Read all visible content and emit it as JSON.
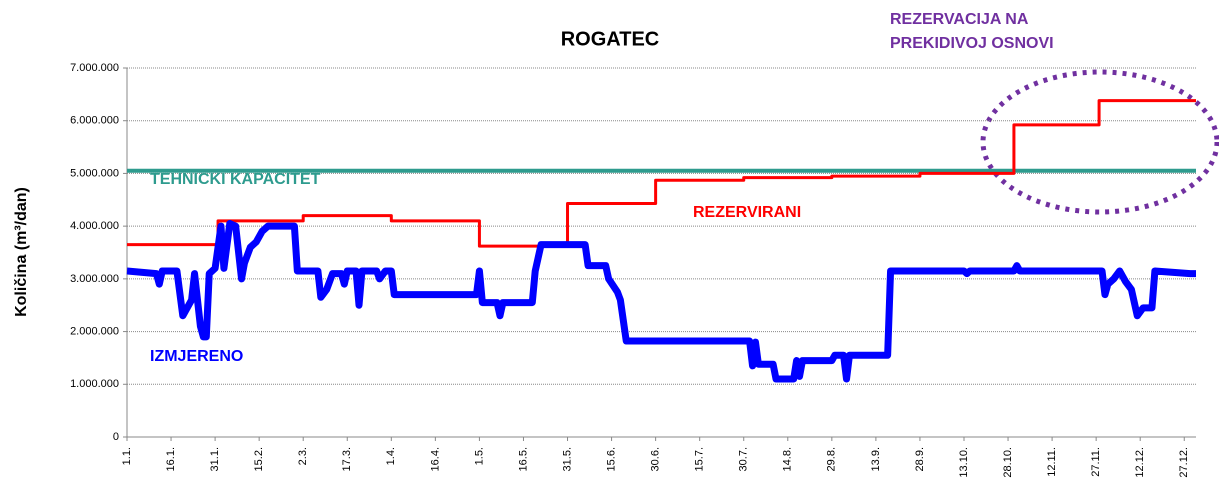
{
  "chart_data": {
    "type": "line",
    "title": "ROGATEC",
    "y_label": "Količina (m³/dan)",
    "annotation": [
      "REZERVACIJA NA",
      "PREKIDIVOJ OSNOVI"
    ],
    "annotation_color": "#7030a0",
    "xlim": [
      0,
      364
    ],
    "xticks": [
      {
        "value": 0,
        "label": "1.1."
      },
      {
        "value": 15,
        "label": "16.1."
      },
      {
        "value": 30,
        "label": "31.1."
      },
      {
        "value": 45,
        "label": "15.2."
      },
      {
        "value": 60,
        "label": "2.3."
      },
      {
        "value": 75,
        "label": "17.3."
      },
      {
        "value": 90,
        "label": "1.4."
      },
      {
        "value": 105,
        "label": "16.4."
      },
      {
        "value": 120,
        "label": "1.5."
      },
      {
        "value": 135,
        "label": "16.5."
      },
      {
        "value": 150,
        "label": "31.5."
      },
      {
        "value": 165,
        "label": "15.6."
      },
      {
        "value": 180,
        "label": "30.6."
      },
      {
        "value": 195,
        "label": "15.7."
      },
      {
        "value": 210,
        "label": "30.7."
      },
      {
        "value": 225,
        "label": "14.8."
      },
      {
        "value": 240,
        "label": "29.8."
      },
      {
        "value": 255,
        "label": "13.9."
      },
      {
        "value": 270,
        "label": "28.9."
      },
      {
        "value": 285,
        "label": "13.10."
      },
      {
        "value": 300,
        "label": "28.10."
      },
      {
        "value": 315,
        "label": "12.11."
      },
      {
        "value": 330,
        "label": "27.11."
      },
      {
        "value": 345,
        "label": "12.12."
      },
      {
        "value": 360,
        "label": "27.12."
      }
    ],
    "ylim": [
      0,
      7000000
    ],
    "yticks": [
      0,
      {
        "value": 1000000,
        "label": "1.000.000"
      },
      {
        "value": 2000000,
        "label": "2.000.000"
      },
      {
        "value": 3000000,
        "label": "3.000.000"
      },
      {
        "value": 4000000,
        "label": "4.000.000"
      },
      {
        "value": 5000000,
        "label": "5.000.000"
      },
      {
        "value": 6000000,
        "label": "6.000.000"
      },
      {
        "value": 7000000,
        "label": "7.000.000"
      }
    ],
    "grid": true,
    "series": [
      {
        "name": "TEHNIČKI KAPACITET",
        "color": "#2e9b8e",
        "x": [
          0,
          364
        ],
        "values": [
          5050000,
          5050000
        ]
      },
      {
        "name": "REZERVIRANI",
        "color": "#ff0000",
        "x": [
          0,
          31,
          31,
          60,
          60,
          90,
          90,
          120,
          120,
          150,
          150,
          180,
          180,
          210,
          210,
          240,
          240,
          270,
          270,
          302,
          302,
          331,
          331,
          364
        ],
        "values": [
          3650000,
          3650000,
          4100000,
          4100000,
          4200000,
          4200000,
          4100000,
          4100000,
          3620000,
          3620000,
          4430000,
          4430000,
          4870000,
          4870000,
          4920000,
          4920000,
          4950000,
          4950000,
          5000000,
          5000000,
          5920000,
          5920000,
          6380000,
          6380000
        ]
      },
      {
        "name": "IZMJERENO",
        "color": "#0000ff",
        "x": [
          0,
          10,
          11,
          12,
          17,
          19,
          21,
          22,
          23,
          24,
          25,
          26,
          27,
          28,
          30,
          32,
          33,
          35,
          37,
          39,
          40,
          42,
          44,
          46,
          48,
          57,
          58,
          65,
          66,
          68,
          70,
          73,
          74,
          75,
          78,
          79,
          80,
          85,
          86,
          88,
          90,
          91,
          117,
          119,
          120,
          121,
          126,
          127,
          128,
          138,
          139,
          141,
          156,
          157,
          163,
          164,
          167,
          168,
          170,
          212,
          213,
          214,
          215,
          220,
          221,
          227,
          228,
          229,
          230,
          240,
          241,
          244,
          245,
          246,
          259,
          260,
          285,
          286,
          287,
          302,
          303,
          304,
          332,
          333,
          334,
          336,
          338,
          340,
          342,
          344,
          346,
          349,
          350,
          362,
          364
        ],
        "values": [
          3150000,
          3100000,
          2900000,
          3150000,
          3150000,
          2300000,
          2500000,
          2600000,
          3100000,
          2600000,
          2100000,
          1900000,
          1900000,
          3100000,
          3200000,
          4000000,
          3200000,
          4050000,
          4000000,
          3000000,
          3300000,
          3600000,
          3700000,
          3900000,
          4000000,
          4000000,
          3150000,
          3150000,
          2650000,
          2800000,
          3100000,
          3100000,
          2900000,
          3150000,
          3150000,
          2500000,
          3150000,
          3150000,
          3000000,
          3150000,
          3150000,
          2700000,
          2700000,
          2700000,
          3150000,
          2550000,
          2550000,
          2300000,
          2550000,
          2550000,
          3150000,
          3650000,
          3650000,
          3250000,
          3250000,
          3000000,
          2750000,
          2600000,
          1820000,
          1820000,
          1350000,
          1800000,
          1380000,
          1380000,
          1100000,
          1100000,
          1450000,
          1150000,
          1450000,
          1450000,
          1550000,
          1550000,
          1100000,
          1550000,
          1550000,
          3150000,
          3150000,
          3100000,
          3150000,
          3150000,
          3250000,
          3150000,
          3150000,
          2700000,
          2900000,
          3000000,
          3150000,
          2950000,
          2800000,
          2300000,
          2450000,
          2450000,
          3150000,
          3100000,
          3100000
        ]
      }
    ]
  }
}
